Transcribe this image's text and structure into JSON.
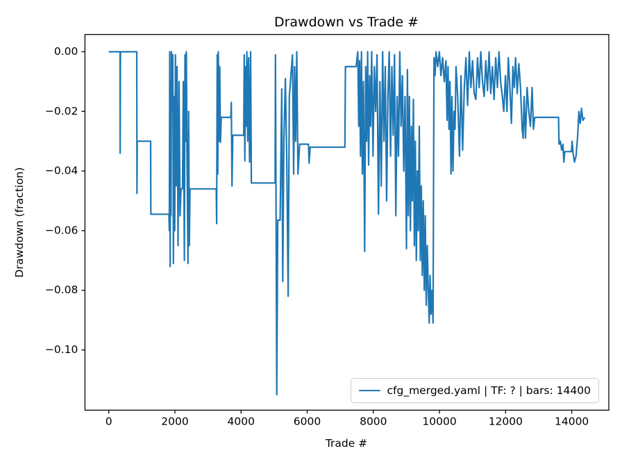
{
  "figure": {
    "title": "Drawdown vs Trade #",
    "xlabel": "Trade #",
    "ylabel": "Drawdown (fraction)",
    "legend": {
      "label": "cfg_merged.yaml | TF: ? | bars: 14400"
    }
  },
  "colors": {
    "line": "#1f77b4",
    "spine": "#000000",
    "tick_label": "#000000",
    "legend_border": "#cccccc",
    "background": "#ffffff"
  },
  "chart_data": {
    "type": "line",
    "title": "Drawdown vs Trade #",
    "xlabel": "Trade #",
    "ylabel": "Drawdown (fraction)",
    "legend_entries": [
      "cfg_merged.yaml | TF: ? | bars: 14400"
    ],
    "legend_position": "lower right",
    "grid": false,
    "xlim": [
      -720,
      15120
    ],
    "ylim": [
      0.0058,
      -0.1202
    ],
    "xticks": {
      "values": [
        0,
        2000,
        4000,
        6000,
        8000,
        10000,
        12000,
        14000
      ],
      "labels": [
        "0",
        "2000",
        "4000",
        "6000",
        "8000",
        "10000",
        "12000",
        "14000"
      ]
    },
    "yticks": {
      "values": [
        0.0,
        -0.02,
        -0.04,
        -0.06,
        -0.08,
        -0.1
      ],
      "labels": [
        "0.00",
        "−0.02",
        "−0.04",
        "−0.06",
        "−0.08",
        "−0.10"
      ]
    },
    "series": [
      {
        "name": "cfg_merged.yaml | TF: ? | bars: 14400",
        "color": "#1f77b4",
        "points": [
          [
            0,
            0
          ],
          [
            340,
            0
          ],
          [
            345,
            -0.034
          ],
          [
            352,
            -0.001
          ],
          [
            360,
            0
          ],
          [
            845,
            0
          ],
          [
            852,
            -0.0475
          ],
          [
            860,
            -0.03
          ],
          [
            1265,
            -0.03
          ],
          [
            1272,
            -0.0545
          ],
          [
            1820,
            -0.0545
          ],
          [
            1830,
            -0.06
          ],
          [
            1842,
            0
          ],
          [
            1855,
            -0.072
          ],
          [
            1868,
            -0.01
          ],
          [
            1880,
            -0.055
          ],
          [
            1895,
            0
          ],
          [
            1915,
            -0.02
          ],
          [
            1935,
            -0.001
          ],
          [
            1955,
            -0.071
          ],
          [
            1975,
            -0.015
          ],
          [
            1995,
            -0.06
          ],
          [
            2015,
            -0.001
          ],
          [
            2040,
            -0.045
          ],
          [
            2065,
            -0.005
          ],
          [
            2095,
            -0.065
          ],
          [
            2125,
            -0.01
          ],
          [
            2155,
            -0.055
          ],
          [
            2185,
            -0.046
          ],
          [
            2230,
            -0.046
          ],
          [
            2255,
            -0.01
          ],
          [
            2285,
            -0.07
          ],
          [
            2305,
            -0.001
          ],
          [
            2325,
            -0.03
          ],
          [
            2345,
            0
          ],
          [
            2370,
            -0.04
          ],
          [
            2395,
            -0.071
          ],
          [
            2415,
            -0.02
          ],
          [
            2435,
            -0.065
          ],
          [
            2455,
            -0.046
          ],
          [
            3250,
            -0.046
          ],
          [
            3262,
            -0.0576
          ],
          [
            3278,
            -0.001
          ],
          [
            3295,
            -0.041
          ],
          [
            3312,
            0
          ],
          [
            3335,
            -0.03
          ],
          [
            3355,
            -0.005
          ],
          [
            3378,
            -0.0304
          ],
          [
            3400,
            -0.022
          ],
          [
            3690,
            -0.022
          ],
          [
            3705,
            -0.017
          ],
          [
            3725,
            -0.045
          ],
          [
            3750,
            -0.028
          ],
          [
            4080,
            -0.028
          ],
          [
            4095,
            -0.001
          ],
          [
            4115,
            -0.0366
          ],
          [
            4135,
            -0.005
          ],
          [
            4155,
            -0.025
          ],
          [
            4175,
            0
          ],
          [
            4200,
            -0.03
          ],
          [
            4228,
            -0.002
          ],
          [
            4258,
            -0.037
          ],
          [
            4288,
            0
          ],
          [
            4312,
            -0.044
          ],
          [
            5030,
            -0.044
          ],
          [
            5040,
            -0.001
          ],
          [
            5080,
            -0.115
          ],
          [
            5110,
            -0.0565
          ],
          [
            5180,
            -0.0565
          ],
          [
            5230,
            -0.0125
          ],
          [
            5260,
            -0.077
          ],
          [
            5295,
            -0.03
          ],
          [
            5340,
            -0.009
          ],
          [
            5385,
            -0.038
          ],
          [
            5425,
            -0.082
          ],
          [
            5460,
            -0.015
          ],
          [
            5555,
            -0.001
          ],
          [
            5590,
            -0.041
          ],
          [
            5620,
            -0.005
          ],
          [
            5650,
            -0.03
          ],
          [
            5685,
            0
          ],
          [
            5720,
            -0.041
          ],
          [
            5770,
            -0.031
          ],
          [
            6040,
            -0.031
          ],
          [
            6055,
            -0.0374
          ],
          [
            6090,
            -0.032
          ],
          [
            7140,
            -0.032
          ],
          [
            7155,
            -0.005
          ],
          [
            7480,
            -0.005
          ],
          [
            7530,
            0
          ],
          [
            7558,
            -0.025
          ],
          [
            7585,
            -0.003
          ],
          [
            7612,
            -0.035
          ],
          [
            7640,
            0
          ],
          [
            7668,
            -0.041
          ],
          [
            7700,
            -0.01
          ],
          [
            7738,
            -0.067
          ],
          [
            7768,
            -0.005
          ],
          [
            7798,
            -0.03
          ],
          [
            7828,
            0
          ],
          [
            7858,
            -0.038
          ],
          [
            7888,
            -0.008
          ],
          [
            7918,
            -0.025
          ],
          [
            7950,
            0
          ],
          [
            7990,
            -0.035
          ],
          [
            8030,
            -0.005
          ],
          [
            8070,
            -0.02
          ],
          [
            8110,
            -0.001
          ],
          [
            8155,
            -0.0545
          ],
          [
            8200,
            -0.01
          ],
          [
            8240,
            -0.045
          ],
          [
            8280,
            0
          ],
          [
            8320,
            -0.03
          ],
          [
            8360,
            -0.005
          ],
          [
            8400,
            -0.05
          ],
          [
            8440,
            -0.015
          ],
          [
            8480,
            0
          ],
          [
            8520,
            -0.035
          ],
          [
            8560,
            -0.005
          ],
          [
            8600,
            -0.028
          ],
          [
            8640,
            -0.001
          ],
          [
            8680,
            -0.055
          ],
          [
            8720,
            -0.015
          ],
          [
            8760,
            -0.035
          ],
          [
            8800,
            0
          ],
          [
            8840,
            -0.025
          ],
          [
            8880,
            -0.008
          ],
          [
            8920,
            -0.04
          ],
          [
            8960,
            -0.015
          ],
          [
            9000,
            -0.066
          ],
          [
            9030,
            -0.006
          ],
          [
            9060,
            -0.055
          ],
          [
            9090,
            -0.015
          ],
          [
            9120,
            -0.06
          ],
          [
            9150,
            -0.025
          ],
          [
            9180,
            -0.05
          ],
          [
            9210,
            -0.016
          ],
          [
            9240,
            -0.065
          ],
          [
            9270,
            -0.03
          ],
          [
            9300,
            -0.07
          ],
          [
            9330,
            -0.04
          ],
          [
            9360,
            -0.06
          ],
          [
            9390,
            -0.025
          ],
          [
            9420,
            -0.07
          ],
          [
            9450,
            -0.045
          ],
          [
            9480,
            -0.075
          ],
          [
            9510,
            -0.05
          ],
          [
            9540,
            -0.08
          ],
          [
            9570,
            -0.055
          ],
          [
            9600,
            -0.085
          ],
          [
            9630,
            -0.065
          ],
          [
            9660,
            -0.08
          ],
          [
            9690,
            -0.091
          ],
          [
            9715,
            -0.075
          ],
          [
            9745,
            -0.088
          ],
          [
            9775,
            -0.08
          ],
          [
            9805,
            -0.091
          ],
          [
            9835,
            -0.002
          ],
          [
            9865,
            -0.008
          ],
          [
            9895,
            0
          ],
          [
            9945,
            -0.005
          ],
          [
            9995,
            0
          ],
          [
            10045,
            -0.008
          ],
          [
            10095,
            -0.002
          ],
          [
            10145,
            -0.01
          ],
          [
            10195,
            -0.003
          ],
          [
            10230,
            -0.023
          ],
          [
            10258,
            -0.005
          ],
          [
            10288,
            -0.026
          ],
          [
            10318,
            -0.01
          ],
          [
            10348,
            -0.041
          ],
          [
            10378,
            -0.015
          ],
          [
            10408,
            -0.04
          ],
          [
            10440,
            -0.02
          ],
          [
            10470,
            -0.026
          ],
          [
            10500,
            -0.005
          ],
          [
            10550,
            -0.015
          ],
          [
            10605,
            -0.035
          ],
          [
            10650,
            -0.008
          ],
          [
            10700,
            -0.033
          ],
          [
            10750,
            -0.012
          ],
          [
            10800,
            -0.002
          ],
          [
            10850,
            -0.018
          ],
          [
            10900,
            0
          ],
          [
            10950,
            -0.012
          ],
          [
            11000,
            -0.003
          ],
          [
            11050,
            -0.014
          ],
          [
            11100,
            -0.016
          ],
          [
            11150,
            -0.002
          ],
          [
            11200,
            -0.012
          ],
          [
            11250,
            0
          ],
          [
            11300,
            -0.01
          ],
          [
            11350,
            -0.015
          ],
          [
            11400,
            -0.003
          ],
          [
            11450,
            -0.013
          ],
          [
            11500,
            0
          ],
          [
            11550,
            -0.014
          ],
          [
            11600,
            -0.005
          ],
          [
            11650,
            -0.016
          ],
          [
            11700,
            -0.002
          ],
          [
            11750,
            -0.012
          ],
          [
            11800,
            0
          ],
          [
            11850,
            -0.01
          ],
          [
            11900,
            -0.015
          ],
          [
            11945,
            -0.02
          ],
          [
            11995,
            -0.008
          ],
          [
            12040,
            -0.02
          ],
          [
            12080,
            -0.002
          ],
          [
            12120,
            -0.01
          ],
          [
            12175,
            -0.024
          ],
          [
            12220,
            -0.005
          ],
          [
            12260,
            -0.012
          ],
          [
            12300,
            -0.002
          ],
          [
            12350,
            -0.014
          ],
          [
            12400,
            -0.004
          ],
          [
            12450,
            -0.012
          ],
          [
            12500,
            -0.026
          ],
          [
            12530,
            -0.029
          ],
          [
            12560,
            -0.015
          ],
          [
            12600,
            -0.029
          ],
          [
            12650,
            -0.012
          ],
          [
            12700,
            -0.02
          ],
          [
            12750,
            -0.025
          ],
          [
            12800,
            -0.012
          ],
          [
            12840,
            -0.026
          ],
          [
            12880,
            -0.022
          ],
          [
            13600,
            -0.022
          ],
          [
            13615,
            -0.031
          ],
          [
            13655,
            -0.03
          ],
          [
            13695,
            -0.033
          ],
          [
            13735,
            -0.031
          ],
          [
            13760,
            -0.037
          ],
          [
            13790,
            -0.0335
          ],
          [
            13990,
            -0.0335
          ],
          [
            14010,
            -0.03
          ],
          [
            14040,
            -0.034
          ],
          [
            14080,
            -0.037
          ],
          [
            14130,
            -0.035
          ],
          [
            14180,
            -0.028
          ],
          [
            14215,
            -0.02
          ],
          [
            14255,
            -0.024
          ],
          [
            14295,
            -0.019
          ],
          [
            14335,
            -0.023
          ],
          [
            14390,
            -0.022
          ]
        ]
      }
    ]
  }
}
